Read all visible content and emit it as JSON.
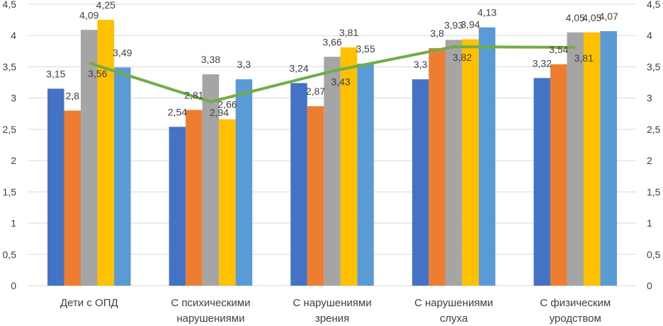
{
  "chart_data": {
    "type": "bar",
    "categories": [
      [
        "Дети с ОПД"
      ],
      [
        "С психическими",
        "нарушениями"
      ],
      [
        "С нарушениями",
        "зрения"
      ],
      [
        "С нарушениями",
        "слуха"
      ],
      [
        "С физическим",
        "уродством"
      ]
    ],
    "series": [
      {
        "color": "#4472c4",
        "values": [
          3.15,
          2.54,
          3.24,
          3.3,
          3.32
        ],
        "labels": [
          "3,15",
          "2,54",
          "3,24",
          "3,3",
          "3,32"
        ]
      },
      {
        "color": "#ed7d31",
        "values": [
          2.8,
          2.81,
          2.87,
          3.8,
          3.54
        ],
        "labels": [
          "2,8",
          "2,81",
          "2,87",
          "3,8",
          "3,54"
        ]
      },
      {
        "color": "#a5a5a5",
        "values": [
          4.09,
          3.38,
          3.66,
          3.93,
          4.05
        ],
        "labels": [
          "4,09",
          "3,38",
          "3,66",
          "3,93",
          "4,05"
        ]
      },
      {
        "color": "#ffc000",
        "values": [
          4.25,
          2.66,
          3.81,
          3.94,
          4.05
        ],
        "labels": [
          "4,25",
          "2,66",
          "3,81",
          "3,94",
          "4,05"
        ]
      },
      {
        "color": "#5b9bd5",
        "values": [
          3.49,
          3.3,
          3.55,
          4.13,
          4.07
        ],
        "labels": [
          "3,49",
          "3,3",
          "3,55",
          "4,13",
          "4,07"
        ]
      }
    ],
    "line": {
      "type": "line",
      "color": "#70ad47",
      "values": [
        3.56,
        2.94,
        3.43,
        3.82,
        3.81
      ],
      "labels": [
        "3,56",
        "2,94",
        "3,43",
        "3,82",
        "3,81"
      ]
    },
    "ylim": [
      0,
      4.5
    ],
    "y_ticks": [
      "0",
      "0,5",
      "1",
      "1,5",
      "2",
      "2,5",
      "3",
      "3,5",
      "4",
      "4,5"
    ],
    "secondary_y_ticks": [
      "0",
      "0,5",
      "1",
      "1,5",
      "2",
      "2,5",
      "3",
      "3,5",
      "4",
      "4,5"
    ],
    "grid": true,
    "title": "",
    "xlabel": "",
    "ylabel": ""
  }
}
